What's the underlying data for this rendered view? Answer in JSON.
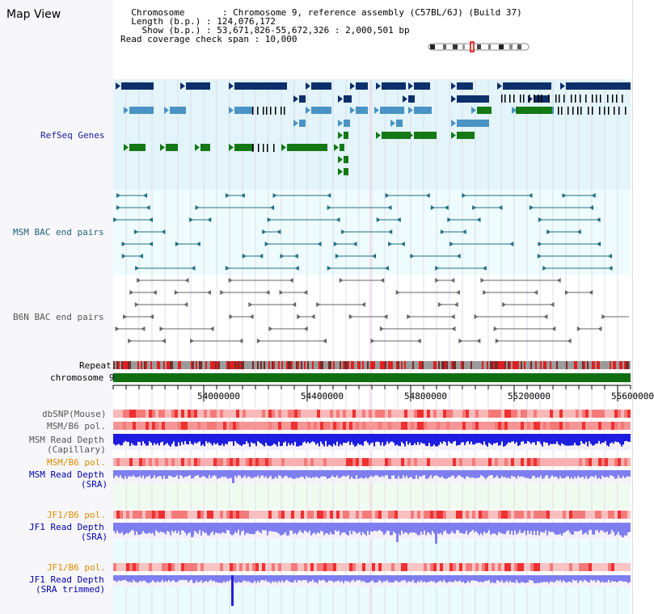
{
  "window": {
    "title": "Map View"
  },
  "info": {
    "line1": "  Chromosome       : Chromosome 9, reference assembly (C57BL/6J) (Build 37)",
    "line2": "  Length (b.p.) : 124,076,172",
    "line3": "    Show (b.p.) : 53,671,826-55,672,326 : 2,000,501 bp",
    "line4": "Read coverage check span : 10,000"
  },
  "tracks": {
    "refseq": "RefSeq Genes",
    "msm_bac": "MSM BAC end pairs",
    "b6n_bac": "B6N BAC end pairs",
    "repeat": "Repeat",
    "chromosome": "chromosome 9",
    "dbsnp": "dbSNP(Mouse)",
    "msm_b6_pol": "MSM/B6 pol.",
    "msm_depth_cap_1": "MSM Read Depth",
    "msm_depth_cap_2": "(Capillary)",
    "msm_b6_pol2": "MSM/B6 pol.",
    "msm_depth_sra_1": "MSM Read Depth",
    "msm_depth_sra_2": "(SRA)",
    "jf1_b6_pol": "JF1/B6 pol.",
    "jf1_depth_sra_1": "JF1 Read Depth",
    "jf1_depth_sra_2": "(SRA)",
    "jf1_b6_pol2": "JF1/B6 pol.",
    "jf1_depth_trim_1": "JF1 Read Depth",
    "jf1_depth_trim_2": "(SRA trimmed)"
  },
  "axis": {
    "ticks": [
      "54000000",
      "54400000",
      "54800000",
      "55200000",
      "55600000"
    ]
  },
  "colors": {
    "refseq_bg": "#e3f4fb",
    "bac_bg": "#eefcfd",
    "gene_dark": "#0d2f6b",
    "gene_mid": "#4a93c4",
    "gene_green": "#147814",
    "chrom_green": "#0f6e0f",
    "depth_blue": "#1d1de0",
    "depth_violet": "#7e7ef0"
  }
}
